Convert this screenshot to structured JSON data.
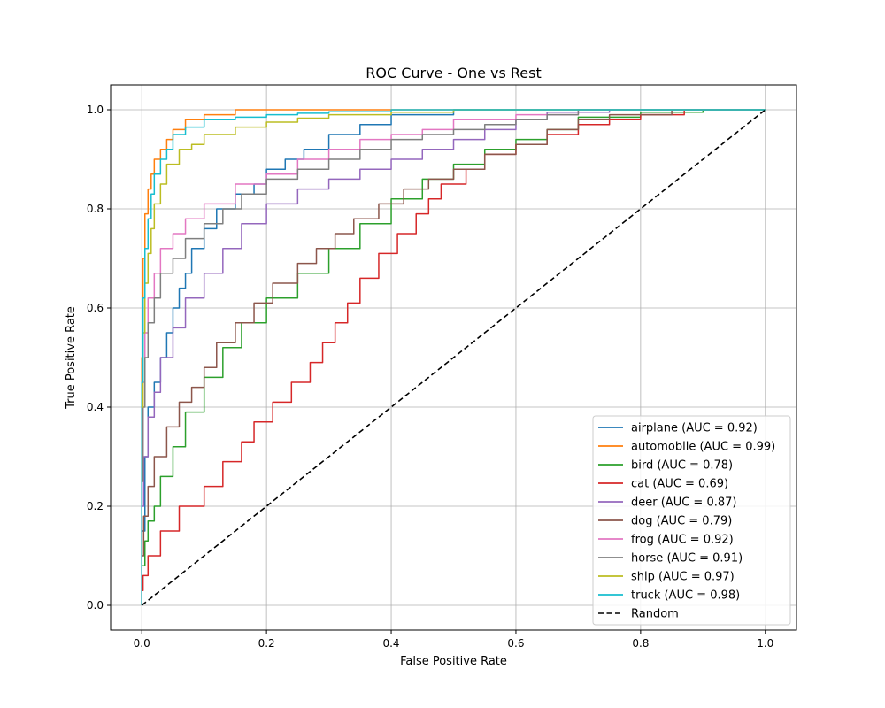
{
  "chart_data": {
    "type": "line",
    "title": "ROC Curve - One vs Rest",
    "xlabel": "False Positive Rate",
    "ylabel": "True Positive Rate",
    "xlim": [
      -0.05,
      1.05
    ],
    "ylim": [
      -0.05,
      1.05
    ],
    "xticks": [
      0.0,
      0.2,
      0.4,
      0.6,
      0.8,
      1.0
    ],
    "xtick_labels": [
      "0.0",
      "0.2",
      "0.4",
      "0.6",
      "0.8",
      "1.0"
    ],
    "yticks": [
      0.0,
      0.2,
      0.4,
      0.6,
      0.8,
      1.0
    ],
    "ytick_labels": [
      "0.0",
      "0.2",
      "0.4",
      "0.6",
      "0.8",
      "1.0"
    ],
    "grid": true,
    "legend_position": "lower-right",
    "series": [
      {
        "name": "airplane (AUC = 0.92)",
        "color": "#1f77b4",
        "dash": "solid",
        "points": [
          [
            0,
            0
          ],
          [
            0.005,
            0.15
          ],
          [
            0.01,
            0.3
          ],
          [
            0.02,
            0.4
          ],
          [
            0.03,
            0.45
          ],
          [
            0.04,
            0.5
          ],
          [
            0.05,
            0.55
          ],
          [
            0.06,
            0.6
          ],
          [
            0.07,
            0.64
          ],
          [
            0.08,
            0.67
          ],
          [
            0.1,
            0.72
          ],
          [
            0.12,
            0.76
          ],
          [
            0.15,
            0.8
          ],
          [
            0.18,
            0.83
          ],
          [
            0.2,
            0.85
          ],
          [
            0.23,
            0.88
          ],
          [
            0.26,
            0.9
          ],
          [
            0.3,
            0.92
          ],
          [
            0.35,
            0.95
          ],
          [
            0.4,
            0.97
          ],
          [
            0.5,
            0.99
          ],
          [
            0.6,
            1.0
          ],
          [
            1.0,
            1.0
          ]
        ]
      },
      {
        "name": "automobile (AUC = 0.99)",
        "color": "#ff7f0e",
        "dash": "solid",
        "points": [
          [
            0,
            0
          ],
          [
            0.002,
            0.5
          ],
          [
            0.005,
            0.7
          ],
          [
            0.01,
            0.79
          ],
          [
            0.015,
            0.84
          ],
          [
            0.02,
            0.87
          ],
          [
            0.03,
            0.9
          ],
          [
            0.04,
            0.92
          ],
          [
            0.05,
            0.94
          ],
          [
            0.07,
            0.96
          ],
          [
            0.1,
            0.98
          ],
          [
            0.15,
            0.99
          ],
          [
            0.25,
            1.0
          ],
          [
            1.0,
            1.0
          ]
        ]
      },
      {
        "name": "bird (AUC = 0.78)",
        "color": "#2ca02c",
        "dash": "solid",
        "points": [
          [
            0,
            0
          ],
          [
            0.005,
            0.08
          ],
          [
            0.01,
            0.13
          ],
          [
            0.02,
            0.17
          ],
          [
            0.03,
            0.2
          ],
          [
            0.05,
            0.26
          ],
          [
            0.07,
            0.32
          ],
          [
            0.1,
            0.39
          ],
          [
            0.13,
            0.46
          ],
          [
            0.16,
            0.52
          ],
          [
            0.2,
            0.57
          ],
          [
            0.25,
            0.62
          ],
          [
            0.3,
            0.67
          ],
          [
            0.35,
            0.72
          ],
          [
            0.4,
            0.77
          ],
          [
            0.45,
            0.82
          ],
          [
            0.5,
            0.86
          ],
          [
            0.55,
            0.89
          ],
          [
            0.6,
            0.92
          ],
          [
            0.65,
            0.94
          ],
          [
            0.7,
            0.96
          ],
          [
            0.8,
            0.985
          ],
          [
            0.9,
            0.995
          ],
          [
            1.0,
            1.0
          ]
        ]
      },
      {
        "name": "cat (AUC = 0.69)",
        "color": "#d62728",
        "dash": "solid",
        "points": [
          [
            0,
            0
          ],
          [
            0.002,
            0.03
          ],
          [
            0.01,
            0.06
          ],
          [
            0.03,
            0.1
          ],
          [
            0.06,
            0.15
          ],
          [
            0.1,
            0.2
          ],
          [
            0.13,
            0.24
          ],
          [
            0.16,
            0.29
          ],
          [
            0.18,
            0.33
          ],
          [
            0.21,
            0.37
          ],
          [
            0.24,
            0.41
          ],
          [
            0.27,
            0.45
          ],
          [
            0.29,
            0.49
          ],
          [
            0.31,
            0.53
          ],
          [
            0.33,
            0.57
          ],
          [
            0.35,
            0.61
          ],
          [
            0.38,
            0.66
          ],
          [
            0.41,
            0.71
          ],
          [
            0.44,
            0.75
          ],
          [
            0.46,
            0.79
          ],
          [
            0.48,
            0.82
          ],
          [
            0.52,
            0.85
          ],
          [
            0.55,
            0.88
          ],
          [
            0.6,
            0.91
          ],
          [
            0.65,
            0.93
          ],
          [
            0.7,
            0.95
          ],
          [
            0.75,
            0.97
          ],
          [
            0.8,
            0.98
          ],
          [
            0.87,
            0.99
          ],
          [
            0.95,
            1.0
          ],
          [
            1.0,
            1.0
          ]
        ]
      },
      {
        "name": "deer (AUC = 0.87)",
        "color": "#9467bd",
        "dash": "solid",
        "points": [
          [
            0,
            0
          ],
          [
            0.003,
            0.2
          ],
          [
            0.01,
            0.3
          ],
          [
            0.02,
            0.38
          ],
          [
            0.03,
            0.43
          ],
          [
            0.05,
            0.5
          ],
          [
            0.07,
            0.56
          ],
          [
            0.1,
            0.62
          ],
          [
            0.13,
            0.67
          ],
          [
            0.16,
            0.72
          ],
          [
            0.2,
            0.77
          ],
          [
            0.25,
            0.81
          ],
          [
            0.3,
            0.84
          ],
          [
            0.35,
            0.86
          ],
          [
            0.4,
            0.88
          ],
          [
            0.45,
            0.9
          ],
          [
            0.5,
            0.92
          ],
          [
            0.55,
            0.94
          ],
          [
            0.6,
            0.96
          ],
          [
            0.65,
            0.98
          ],
          [
            0.75,
            0.995
          ],
          [
            0.85,
            1.0
          ],
          [
            1.0,
            1.0
          ]
        ]
      },
      {
        "name": "dog (AUC = 0.79)",
        "color": "#8c564b",
        "dash": "solid",
        "points": [
          [
            0,
            0
          ],
          [
            0.003,
            0.1
          ],
          [
            0.01,
            0.18
          ],
          [
            0.02,
            0.24
          ],
          [
            0.04,
            0.3
          ],
          [
            0.06,
            0.36
          ],
          [
            0.08,
            0.41
          ],
          [
            0.1,
            0.44
          ],
          [
            0.12,
            0.48
          ],
          [
            0.15,
            0.53
          ],
          [
            0.18,
            0.57
          ],
          [
            0.21,
            0.61
          ],
          [
            0.25,
            0.65
          ],
          [
            0.28,
            0.69
          ],
          [
            0.31,
            0.72
          ],
          [
            0.34,
            0.75
          ],
          [
            0.38,
            0.78
          ],
          [
            0.42,
            0.81
          ],
          [
            0.46,
            0.84
          ],
          [
            0.5,
            0.86
          ],
          [
            0.55,
            0.88
          ],
          [
            0.6,
            0.91
          ],
          [
            0.65,
            0.93
          ],
          [
            0.7,
            0.96
          ],
          [
            0.75,
            0.98
          ],
          [
            0.85,
            0.99
          ],
          [
            1.0,
            1.0
          ]
        ]
      },
      {
        "name": "frog (AUC = 0.92)",
        "color": "#e377c2",
        "dash": "solid",
        "points": [
          [
            0,
            0
          ],
          [
            0.002,
            0.3
          ],
          [
            0.005,
            0.45
          ],
          [
            0.01,
            0.55
          ],
          [
            0.02,
            0.62
          ],
          [
            0.03,
            0.67
          ],
          [
            0.05,
            0.72
          ],
          [
            0.07,
            0.75
          ],
          [
            0.1,
            0.78
          ],
          [
            0.15,
            0.81
          ],
          [
            0.2,
            0.85
          ],
          [
            0.25,
            0.87
          ],
          [
            0.3,
            0.9
          ],
          [
            0.35,
            0.92
          ],
          [
            0.4,
            0.94
          ],
          [
            0.45,
            0.95
          ],
          [
            0.5,
            0.96
          ],
          [
            0.6,
            0.98
          ],
          [
            0.7,
            0.99
          ],
          [
            0.8,
            1.0
          ],
          [
            1.0,
            1.0
          ]
        ]
      },
      {
        "name": "horse (AUC = 0.91)",
        "color": "#7f7f7f",
        "dash": "solid",
        "points": [
          [
            0,
            0
          ],
          [
            0.002,
            0.25
          ],
          [
            0.005,
            0.4
          ],
          [
            0.01,
            0.5
          ],
          [
            0.02,
            0.57
          ],
          [
            0.03,
            0.62
          ],
          [
            0.05,
            0.67
          ],
          [
            0.07,
            0.7
          ],
          [
            0.1,
            0.74
          ],
          [
            0.13,
            0.77
          ],
          [
            0.16,
            0.8
          ],
          [
            0.2,
            0.83
          ],
          [
            0.25,
            0.86
          ],
          [
            0.3,
            0.88
          ],
          [
            0.35,
            0.9
          ],
          [
            0.4,
            0.92
          ],
          [
            0.45,
            0.94
          ],
          [
            0.5,
            0.95
          ],
          [
            0.55,
            0.96
          ],
          [
            0.6,
            0.97
          ],
          [
            0.65,
            0.98
          ],
          [
            0.7,
            0.99
          ],
          [
            0.75,
            1.0
          ],
          [
            1.0,
            1.0
          ]
        ]
      },
      {
        "name": "ship (AUC = 0.97)",
        "color": "#bcbd22",
        "dash": "solid",
        "points": [
          [
            0,
            0
          ],
          [
            0.002,
            0.4
          ],
          [
            0.005,
            0.55
          ],
          [
            0.01,
            0.65
          ],
          [
            0.015,
            0.71
          ],
          [
            0.02,
            0.76
          ],
          [
            0.03,
            0.81
          ],
          [
            0.04,
            0.85
          ],
          [
            0.06,
            0.89
          ],
          [
            0.08,
            0.92
          ],
          [
            0.1,
            0.93
          ],
          [
            0.15,
            0.95
          ],
          [
            0.2,
            0.965
          ],
          [
            0.25,
            0.975
          ],
          [
            0.3,
            0.983
          ],
          [
            0.4,
            0.99
          ],
          [
            0.5,
            0.995
          ],
          [
            0.6,
            1.0
          ],
          [
            1.0,
            1.0
          ]
        ]
      },
      {
        "name": "truck (AUC = 0.98)",
        "color": "#17becf",
        "dash": "solid",
        "points": [
          [
            0,
            0
          ],
          [
            0.002,
            0.45
          ],
          [
            0.005,
            0.62
          ],
          [
            0.01,
            0.72
          ],
          [
            0.015,
            0.78
          ],
          [
            0.02,
            0.83
          ],
          [
            0.03,
            0.87
          ],
          [
            0.04,
            0.9
          ],
          [
            0.05,
            0.92
          ],
          [
            0.07,
            0.95
          ],
          [
            0.1,
            0.965
          ],
          [
            0.15,
            0.98
          ],
          [
            0.2,
            0.985
          ],
          [
            0.25,
            0.99
          ],
          [
            0.3,
            0.993
          ],
          [
            0.4,
            0.996
          ],
          [
            0.55,
            1.0
          ],
          [
            1.0,
            1.0
          ]
        ]
      },
      {
        "name": "Random",
        "color": "#000000",
        "dash": "dashed",
        "points": [
          [
            0,
            0
          ],
          [
            1,
            1
          ]
        ]
      }
    ]
  }
}
